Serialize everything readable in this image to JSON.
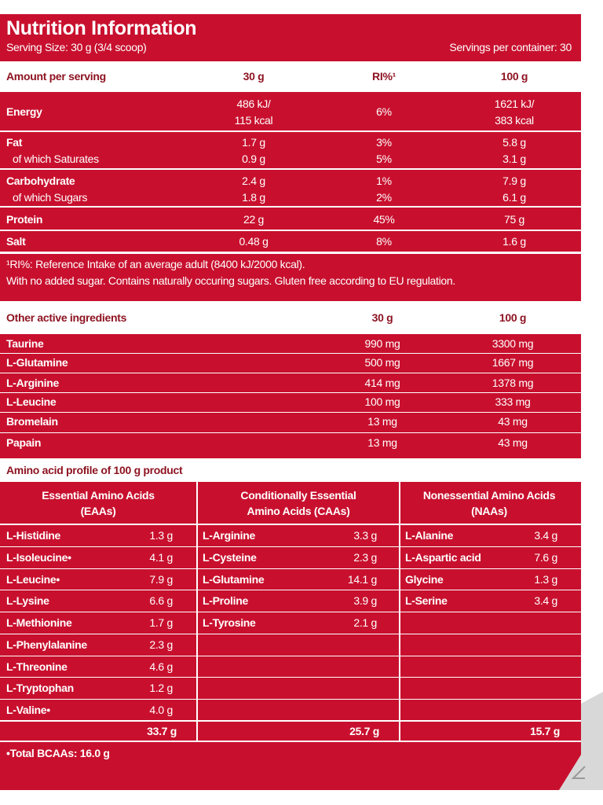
{
  "header": {
    "title": "Nutrition Information",
    "serving_size": "Serving Size: 30 g (3/4 scoop)",
    "servings_per_container": "Servings per container: 30"
  },
  "nutrition": {
    "columns": [
      "Amount per serving",
      "30 g",
      "RI%¹",
      "100 g"
    ],
    "groups": [
      [
        [
          "Energy",
          [
            "486 kJ/",
            "115 kcal"
          ],
          "6%",
          [
            "1621 kJ/",
            "383 kcal"
          ]
        ]
      ],
      [
        [
          "Fat",
          "1.7 g",
          "3%",
          "5.8 g"
        ],
        [
          "of which Saturates",
          "0.9 g",
          "5%",
          "3.1 g"
        ]
      ],
      [
        [
          "Carbohydrate",
          "2.4 g",
          "1%",
          "7.9 g"
        ],
        [
          "of which Sugars",
          "1.8 g",
          "2%",
          "6.1 g"
        ]
      ],
      [
        [
          "Protein",
          "22 g",
          "45%",
          "75 g"
        ]
      ],
      [
        [
          "Salt",
          "0.48 g",
          "8%",
          "1.6 g"
        ]
      ]
    ],
    "footnotes": [
      "¹RI%: Reference Intake of an average adult (8400 kJ/2000 kcal).",
      "With no added sugar. Contains naturally occuring sugars. Gluten free according to EU regulation."
    ]
  },
  "active": {
    "columns": [
      "Other active ingredients",
      "30 g",
      "100 g"
    ],
    "rows": [
      [
        "Taurine",
        "990 mg",
        "3300 mg"
      ],
      [
        "L-Glutamine",
        "500 mg",
        "1667 mg"
      ],
      [
        "L-Arginine",
        "414 mg",
        "1378 mg"
      ],
      [
        "L-Leucine",
        "100 mg",
        "333 mg"
      ],
      [
        "Bromelain",
        "13 mg",
        "43 mg"
      ],
      [
        "Papain",
        "13 mg",
        "43 mg"
      ]
    ]
  },
  "amino": {
    "title": "Amino acid profile of 100 g product",
    "columns": [
      {
        "header": [
          "Essential Amino Acids",
          "(EAAs)"
        ],
        "rows": [
          [
            "L-Histidine",
            "1.3 g"
          ],
          [
            "L-Isoleucine•",
            "4.1 g"
          ],
          [
            "L-Leucine•",
            "7.9 g"
          ],
          [
            "L-Lysine",
            "6.6 g"
          ],
          [
            "L-Methionine",
            "1.7 g"
          ],
          [
            "L-Phenylalanine",
            "2.3 g"
          ],
          [
            "L-Threonine",
            "4.6 g"
          ],
          [
            "L-Tryptophan",
            "1.2 g"
          ],
          [
            "L-Valine•",
            "4.0 g"
          ]
        ],
        "total": "33.7 g"
      },
      {
        "header": [
          "Conditionally Essential",
          "Amino Acids (CAAs)"
        ],
        "rows": [
          [
            "L-Arginine",
            "3.3 g"
          ],
          [
            "L-Cysteine",
            "2.3 g"
          ],
          [
            "L-Glutamine",
            "14.1 g"
          ],
          [
            "L-Proline",
            "3.9 g"
          ],
          [
            "L-Tyrosine",
            "2.1 g"
          ]
        ],
        "total": "25.7 g"
      },
      {
        "header": [
          "Nonessential Amino Acids",
          "(NAAs)"
        ],
        "rows": [
          [
            "L-Alanine",
            "3.4 g"
          ],
          [
            "L-Aspartic acid",
            "7.6 g"
          ],
          [
            "Glycine",
            "1.3 g"
          ],
          [
            "L-Serine",
            "3.4 g"
          ]
        ],
        "total": "15.7 g"
      }
    ],
    "footer": "•Total BCAAs: 16.0 g"
  }
}
